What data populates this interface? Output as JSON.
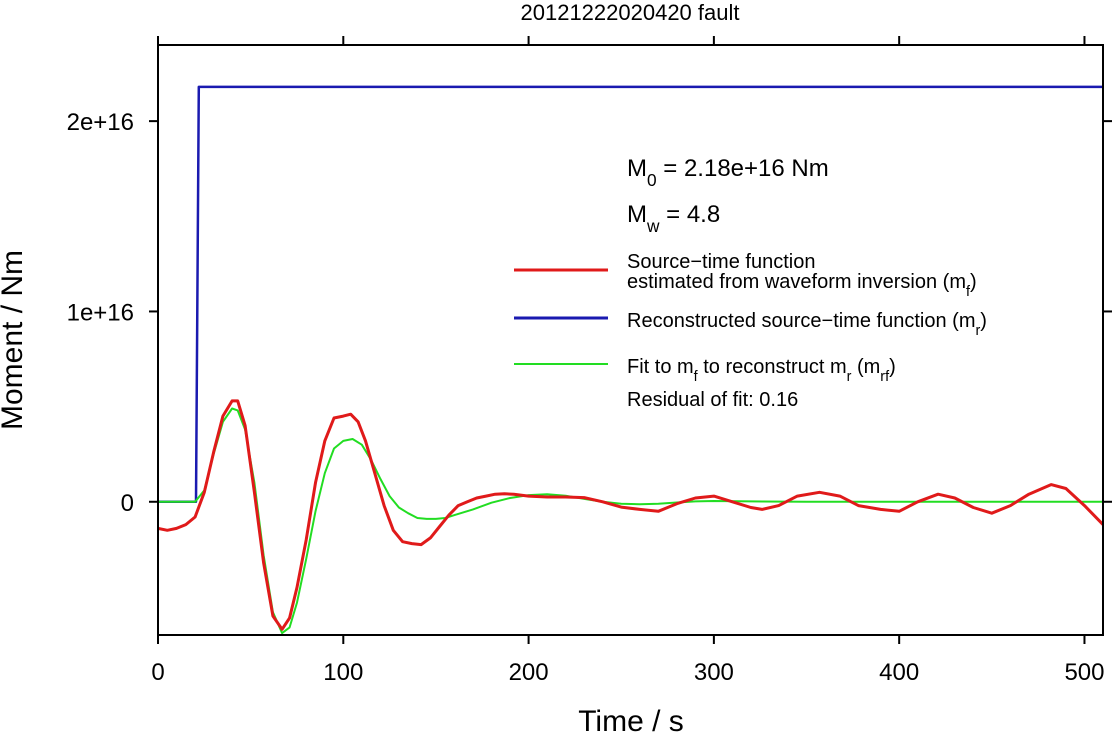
{
  "chart_data": {
    "type": "line",
    "title": "20121222020420 fault",
    "xlabel": "Time / s",
    "ylabel": "Moment / Nm",
    "xlim": [
      0,
      510
    ],
    "ylim": [
      -7000000000000000.0,
      2.4e+16
    ],
    "xticks": [
      0,
      100,
      200,
      300,
      400,
      500
    ],
    "xtick_labels": [
      "0",
      "100",
      "200",
      "300",
      "400",
      "500"
    ],
    "yticks": [
      0,
      1e+16,
      2e+16
    ],
    "ytick_labels": [
      "0",
      "1e+16",
      "2e+16"
    ],
    "grid": false,
    "legend_position": "right",
    "annotations": {
      "m0": {
        "base": "M",
        "sub": "0",
        "text": " = 2.18e+16 Nm"
      },
      "mw": {
        "base": "M",
        "sub": "w",
        "text": " = 4.8"
      },
      "residual": "Residual of fit: 0.16"
    },
    "series": [
      {
        "key": "mf",
        "legend_lines": [
          "Source−time function",
          "estimated from waveform inversion (m",
          "f",
          ")"
        ],
        "color": "#e01a1a",
        "x": [
          0,
          5,
          10,
          15,
          20,
          25,
          30,
          35,
          40,
          43,
          47,
          52,
          57,
          62,
          67,
          71,
          75,
          80,
          85,
          90,
          95,
          100,
          104,
          108,
          112,
          117,
          122,
          127,
          132,
          137,
          142,
          147,
          152,
          157,
          162,
          167,
          172,
          177,
          182,
          187,
          192,
          200,
          210,
          220,
          230,
          240,
          250,
          260,
          270,
          280,
          290,
          300,
          310,
          320,
          326,
          335,
          345,
          357,
          368,
          378,
          390,
          400,
          410,
          421,
          430,
          440,
          450,
          460,
          470,
          482,
          490,
          500,
          510
        ],
        "y": [
          -1400000000000000.0,
          -1500000000000000.0,
          -1400000000000000.0,
          -1200000000000000.0,
          -800000000000000.0,
          500000000000000.0,
          2600000000000000.0,
          4500000000000000.0,
          5300000000000000.0,
          5300000000000000.0,
          4000000000000000.0,
          500000000000000.0,
          -3200000000000000.0,
          -6000000000000000.0,
          -6700000000000000.0,
          -6100000000000000.0,
          -4500000000000000.0,
          -2000000000000000.0,
          1000000000000000.0,
          3200000000000000.0,
          4400000000000000.0,
          4500000000000000.0,
          4600000000000000.0,
          4200000000000000.0,
          3200000000000000.0,
          1500000000000000.0,
          -200000000000000.0,
          -1500000000000000.0,
          -2100000000000000.0,
          -2200000000000000.0,
          -2250000000000000.0,
          -1900000000000000.0,
          -1300000000000000.0,
          -700000000000000.0,
          -200000000000000.0,
          0,
          200000000000000.0,
          300000000000000.0,
          400000000000000.0,
          420000000000000.0,
          400000000000000.0,
          300000000000000.0,
          250000000000000.0,
          250000000000000.0,
          220000000000000.0,
          0,
          -280000000000000.0,
          -400000000000000.0,
          -500000000000000.0,
          -100000000000000.0,
          200000000000000.0,
          300000000000000.0,
          0,
          -300000000000000.0,
          -400000000000000.0,
          -200000000000000.0,
          300000000000000.0,
          500000000000000.0,
          300000000000000.0,
          -200000000000000.0,
          -400000000000000.0,
          -500000000000000.0,
          0,
          400000000000000.0,
          200000000000000.0,
          -300000000000000.0,
          -600000000000000.0,
          -200000000000000.0,
          400000000000000.0,
          900000000000000.0,
          700000000000000.0,
          -200000000000000.0,
          -1200000000000000.0
        ]
      },
      {
        "key": "mr",
        "legend_lines": [
          "Reconstructed source−time function (m",
          "r",
          ")"
        ],
        "color": "#1a1ab0",
        "x": [
          0,
          20.5,
          22,
          510
        ],
        "y": [
          0,
          0,
          2.18e+16,
          2.18e+16
        ]
      },
      {
        "key": "mrf",
        "legend_lines": [
          "Fit to m",
          "f",
          " to reconstruct m",
          "r",
          " (m",
          "rf",
          ")"
        ],
        "color": "#22dd22",
        "x": [
          0,
          10,
          20,
          25,
          30,
          35,
          40,
          43,
          47,
          52,
          57,
          62,
          67,
          71,
          75,
          80,
          85,
          90,
          95,
          100,
          105,
          110,
          115,
          120,
          125,
          130,
          135,
          140,
          145,
          150,
          155,
          160,
          170,
          180,
          190,
          200,
          210,
          220,
          230,
          240,
          250,
          260,
          270,
          280,
          290,
          300,
          320,
          350,
          400,
          450,
          510
        ],
        "y": [
          0,
          0,
          0,
          600000000000000.0,
          2500000000000000.0,
          4200000000000000.0,
          4900000000000000.0,
          4800000000000000.0,
          3800000000000000.0,
          1000000000000000.0,
          -2800000000000000.0,
          -5800000000000000.0,
          -6900000000000000.0,
          -6600000000000000.0,
          -5300000000000000.0,
          -3000000000000000.0,
          -500000000000000.0,
          1500000000000000.0,
          2800000000000000.0,
          3200000000000000.0,
          3300000000000000.0,
          3000000000000000.0,
          2200000000000000.0,
          1200000000000000.0,
          300000000000000.0,
          -300000000000000.0,
          -600000000000000.0,
          -850000000000000.0,
          -900000000000000.0,
          -900000000000000.0,
          -850000000000000.0,
          -700000000000000.0,
          -400000000000000.0,
          -50000000000000.0,
          200000000000000.0,
          350000000000000.0,
          400000000000000.0,
          320000000000000.0,
          150000000000000.0,
          0,
          -100000000000000.0,
          -130000000000000.0,
          -100000000000000.0,
          -40000000000000.0,
          20000000000000.0,
          40000000000000.0,
          20000000000000.0,
          0,
          0,
          0,
          0
        ]
      }
    ]
  }
}
